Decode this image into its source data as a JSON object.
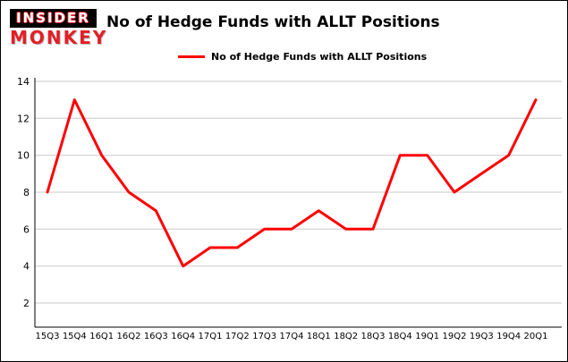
{
  "header": {
    "logo_top": "INSIDER",
    "logo_bottom": "MONKEY",
    "title": "No of Hedge Funds with ALLT Positions"
  },
  "legend": {
    "label": "No of Hedge Funds with ALLT Positions"
  },
  "colors": {
    "series_red": "#ff0000",
    "logo_red": "#e31f26",
    "gridline_gray": "#c9c9c9",
    "axis_black": "#000000"
  },
  "chart_data": {
    "type": "line",
    "title": "No of Hedge Funds with ALLT Positions",
    "legend_entries": [
      "No of Hedge Funds with ALLT Positions"
    ],
    "legend_position": "top-left",
    "grid": true,
    "xlabel": "",
    "ylabel": "",
    "categories": [
      "15Q3",
      "15Q4",
      "16Q1",
      "16Q2",
      "16Q3",
      "16Q4",
      "17Q1",
      "17Q2",
      "17Q3",
      "17Q4",
      "18Q1",
      "18Q2",
      "18Q3",
      "18Q4",
      "19Q1",
      "19Q2",
      "19Q3",
      "19Q4",
      "20Q1"
    ],
    "series": [
      {
        "name": "No of Hedge Funds with ALLT Positions",
        "color": "#ff0000",
        "values": [
          8,
          13,
          10,
          8,
          7,
          4,
          5,
          5,
          6,
          6,
          7,
          6,
          6,
          10,
          10,
          8,
          9,
          10,
          13
        ]
      }
    ],
    "ylim": [
      1,
      14
    ],
    "yticks": [
      2,
      4,
      6,
      8,
      10,
      12,
      14
    ]
  }
}
